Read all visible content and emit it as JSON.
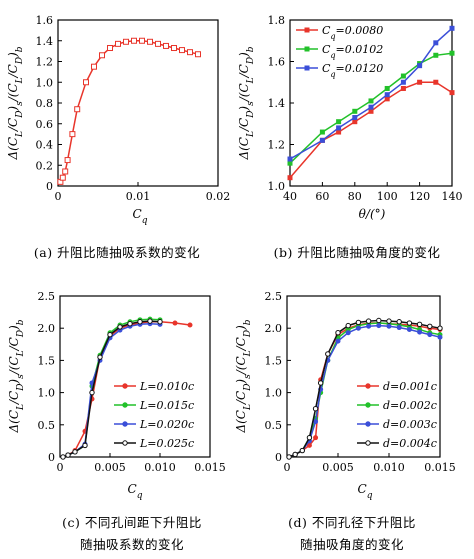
{
  "captions": [
    "(a) 升阻比随抽吸系数的变化",
    "(b) 升阻比随抽吸角度的变化",
    "(c) 不同孔间距下升阻比",
    "(d) 不同孔径下升阻比"
  ],
  "captions_line2": [
    "",
    "",
    "随抽吸系数的变化",
    "随抽吸角度的变化"
  ],
  "chart_data": [
    {
      "id": "a",
      "type": "line",
      "xlabel": "C_q",
      "ylabel": "Δ(C_L/C_D)_s/(C_L/C_D)_b",
      "xlim": [
        0,
        0.02
      ],
      "ylim": [
        0,
        1.6
      ],
      "xticks": [
        0,
        0.01,
        0.02
      ],
      "xtick_labels": [
        "0",
        "0.01",
        "0.02"
      ],
      "yticks": [
        0,
        0.2,
        0.4,
        0.6,
        0.8,
        1.0,
        1.2,
        1.4,
        1.6
      ],
      "ytick_labels": [
        "0",
        "0.2",
        "0.4",
        "0.6",
        "0.8",
        "1.0",
        "1.2",
        "1.4",
        "1.6"
      ],
      "grid": false,
      "series": [
        {
          "color": "#e8352b",
          "marker": "square-open",
          "x": [
            0.0003,
            0.0006,
            0.0009,
            0.0012,
            0.0018,
            0.0024,
            0.0035,
            0.0045,
            0.0055,
            0.0065,
            0.0075,
            0.0085,
            0.0095,
            0.0105,
            0.0115,
            0.0125,
            0.0135,
            0.0145,
            0.0155,
            0.0165,
            0.0175
          ],
          "y": [
            0.04,
            0.08,
            0.14,
            0.25,
            0.5,
            0.74,
            1.0,
            1.15,
            1.26,
            1.33,
            1.37,
            1.39,
            1.4,
            1.4,
            1.39,
            1.37,
            1.35,
            1.33,
            1.31,
            1.29,
            1.27
          ]
        }
      ]
    },
    {
      "id": "b",
      "type": "line",
      "xlabel": "θ/(°)",
      "ylabel": "Δ(C_L/C_D)_s/(C_L/C_D)_b",
      "xlim": [
        40,
        140
      ],
      "ylim": [
        1.0,
        1.8
      ],
      "xticks": [
        40,
        60,
        80,
        100,
        120,
        140
      ],
      "xtick_labels": [
        "40",
        "60",
        "80",
        "100",
        "120",
        "140"
      ],
      "yticks": [
        1.0,
        1.2,
        1.4,
        1.6,
        1.8
      ],
      "ytick_labels": [
        "1.0",
        "1.2",
        "1.4",
        "1.6",
        "1.8"
      ],
      "grid": false,
      "legend": "top-left",
      "x": [
        40,
        60,
        70,
        80,
        90,
        100,
        110,
        120,
        130,
        140
      ],
      "series": [
        {
          "name": "C_q=0.0080",
          "color": "#e8352b",
          "values": [
            1.04,
            1.22,
            1.26,
            1.31,
            1.36,
            1.42,
            1.47,
            1.5,
            1.5,
            1.45
          ]
        },
        {
          "name": "C_q=0.0102",
          "color": "#22c12a",
          "values": [
            1.11,
            1.26,
            1.31,
            1.36,
            1.41,
            1.47,
            1.53,
            1.59,
            1.63,
            1.64
          ]
        },
        {
          "name": "C_q=0.0120",
          "color": "#3b4fd8",
          "values": [
            1.13,
            1.22,
            1.28,
            1.33,
            1.38,
            1.44,
            1.5,
            1.58,
            1.69,
            1.76
          ]
        }
      ]
    },
    {
      "id": "c",
      "type": "line",
      "xlabel": "C_q",
      "ylabel": "Δ(C_L/C_D)_s/(C_L/C_D)_b",
      "xlim": [
        0,
        0.015
      ],
      "ylim": [
        0,
        2.5
      ],
      "xticks": [
        0,
        0.005,
        0.01,
        0.015
      ],
      "xtick_labels": [
        "0",
        "0.005",
        "0.010",
        "0.015"
      ],
      "yticks": [
        0,
        0.5,
        1.0,
        1.5,
        2.0,
        2.5
      ],
      "ytick_labels": [
        "0",
        "0.5",
        "1.0",
        "1.5",
        "2.0",
        "2.5"
      ],
      "grid": false,
      "legend": "bottom-right",
      "series": [
        {
          "name": "L=0.010c",
          "color": "#e8352b",
          "x": [
            0.0003,
            0.0008,
            0.0015,
            0.0025,
            0.0032,
            0.004,
            0.005,
            0.006,
            0.007,
            0.008,
            0.009,
            0.01,
            0.0115,
            0.013
          ],
          "y": [
            0.0,
            0.03,
            0.1,
            0.4,
            0.9,
            1.55,
            1.88,
            2.0,
            2.05,
            2.08,
            2.1,
            2.1,
            2.08,
            2.05
          ]
        },
        {
          "name": "L=0.015c",
          "color": "#22c12a",
          "x": [
            0.0003,
            0.0008,
            0.0015,
            0.0025,
            0.0032,
            0.004,
            0.005,
            0.006,
            0.007,
            0.008,
            0.009,
            0.01
          ],
          "y": [
            0.0,
            0.03,
            0.08,
            0.18,
            1.1,
            1.58,
            1.93,
            2.05,
            2.1,
            2.13,
            2.14,
            2.13
          ]
        },
        {
          "name": "L=0.020c",
          "color": "#3b4fd8",
          "x": [
            0.0003,
            0.0008,
            0.0015,
            0.0025,
            0.0032,
            0.004,
            0.005,
            0.006,
            0.007,
            0.008,
            0.009,
            0.01
          ],
          "y": [
            0.0,
            0.03,
            0.08,
            0.2,
            1.15,
            1.5,
            1.85,
            1.97,
            2.03,
            2.06,
            2.07,
            2.06
          ]
        },
        {
          "name": "L=0.025c",
          "color": "#111111",
          "x": [
            0.0003,
            0.0008,
            0.0015,
            0.0025,
            0.0032,
            0.004,
            0.005,
            0.006,
            0.007,
            0.008,
            0.009,
            0.01
          ],
          "y": [
            0.0,
            0.03,
            0.08,
            0.18,
            1.0,
            1.55,
            1.9,
            2.02,
            2.07,
            2.1,
            2.11,
            2.1
          ]
        }
      ]
    },
    {
      "id": "d",
      "type": "line",
      "xlabel": "C_q",
      "ylabel": "Δ(C_L/C_D)_s/(C_L/C_D)_b",
      "xlim": [
        0,
        0.015
      ],
      "ylim": [
        0,
        2.5
      ],
      "xticks": [
        0,
        0.005,
        0.01,
        0.015
      ],
      "xtick_labels": [
        "0",
        "0.005",
        "0.010",
        "0.015"
      ],
      "yticks": [
        0,
        0.5,
        1.0,
        1.5,
        2.0,
        2.5
      ],
      "ytick_labels": [
        "0",
        "0.5",
        "1.0",
        "1.5",
        "2.0",
        "2.5"
      ],
      "grid": false,
      "legend": "bottom-right",
      "series": [
        {
          "name": "d=0.001c",
          "color": "#e8352b",
          "x": [
            0.0002,
            0.0008,
            0.0015,
            0.0022,
            0.0028,
            0.0033,
            0.004,
            0.005,
            0.006,
            0.007,
            0.008,
            0.009,
            0.01,
            0.011,
            0.012,
            0.013,
            0.014,
            0.015
          ],
          "y": [
            0.0,
            0.04,
            0.1,
            0.18,
            0.3,
            1.2,
            1.6,
            1.9,
            2.0,
            2.05,
            2.08,
            2.08,
            2.07,
            2.06,
            2.05,
            2.03,
            2.0,
            1.98
          ]
        },
        {
          "name": "d=0.002c",
          "color": "#22c12a",
          "x": [
            0.0002,
            0.0008,
            0.0015,
            0.0022,
            0.0028,
            0.0033,
            0.004,
            0.005,
            0.006,
            0.007,
            0.008,
            0.009,
            0.01,
            0.011,
            0.012,
            0.013,
            0.014,
            0.015
          ],
          "y": [
            0.0,
            0.04,
            0.1,
            0.3,
            0.6,
            1.0,
            1.5,
            1.85,
            1.98,
            2.04,
            2.07,
            2.08,
            2.07,
            2.05,
            2.02,
            1.98,
            1.93,
            1.9
          ]
        },
        {
          "name": "d=0.003c",
          "color": "#3b4fd8",
          "x": [
            0.0002,
            0.0008,
            0.0015,
            0.0022,
            0.0028,
            0.0033,
            0.004,
            0.005,
            0.006,
            0.007,
            0.008,
            0.009,
            0.01,
            0.011,
            0.012,
            0.013,
            0.014,
            0.015
          ],
          "y": [
            0.0,
            0.04,
            0.1,
            0.25,
            0.55,
            1.05,
            1.5,
            1.8,
            1.93,
            2.0,
            2.03,
            2.04,
            2.03,
            2.01,
            1.98,
            1.94,
            1.9,
            1.86
          ]
        },
        {
          "name": "d=0.004c",
          "color": "#111111",
          "x": [
            0.0002,
            0.0008,
            0.0015,
            0.0022,
            0.0028,
            0.0033,
            0.004,
            0.005,
            0.006,
            0.007,
            0.008,
            0.009,
            0.01,
            0.011,
            0.012,
            0.013,
            0.014,
            0.015
          ],
          "y": [
            0.0,
            0.04,
            0.1,
            0.3,
            0.75,
            1.15,
            1.6,
            1.93,
            2.04,
            2.09,
            2.11,
            2.12,
            2.11,
            2.1,
            2.08,
            2.06,
            2.03,
            2.0
          ]
        }
      ]
    }
  ]
}
